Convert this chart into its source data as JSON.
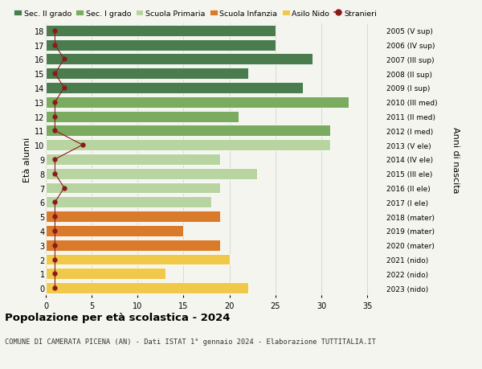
{
  "ages": [
    18,
    17,
    16,
    15,
    14,
    13,
    12,
    11,
    10,
    9,
    8,
    7,
    6,
    5,
    4,
    3,
    2,
    1,
    0
  ],
  "years": [
    "2005 (V sup)",
    "2006 (IV sup)",
    "2007 (III sup)",
    "2008 (II sup)",
    "2009 (I sup)",
    "2010 (III med)",
    "2011 (II med)",
    "2012 (I med)",
    "2013 (V ele)",
    "2014 (IV ele)",
    "2015 (III ele)",
    "2016 (II ele)",
    "2017 (I ele)",
    "2018 (mater)",
    "2019 (mater)",
    "2020 (mater)",
    "2021 (nido)",
    "2022 (nido)",
    "2023 (nido)"
  ],
  "bar_values": [
    25,
    25,
    29,
    22,
    28,
    33,
    21,
    31,
    31,
    19,
    23,
    19,
    18,
    19,
    15,
    19,
    20,
    13,
    22
  ],
  "bar_colors": [
    "#4a7c4e",
    "#4a7c4e",
    "#4a7c4e",
    "#4a7c4e",
    "#4a7c4e",
    "#7aab5e",
    "#7aab5e",
    "#7aab5e",
    "#b8d4a0",
    "#b8d4a0",
    "#b8d4a0",
    "#b8d4a0",
    "#b8d4a0",
    "#d97b2b",
    "#d97b2b",
    "#d97b2b",
    "#f0c84a",
    "#f0c84a",
    "#f0c84a"
  ],
  "stranieri_values": [
    1,
    1,
    2,
    1,
    2,
    1,
    1,
    1,
    4,
    1,
    1,
    2,
    1,
    1,
    1,
    1,
    1,
    1,
    1
  ],
  "stranieri_color": "#8b1a1a",
  "legend_labels": [
    "Sec. II grado",
    "Sec. I grado",
    "Scuola Primaria",
    "Scuola Infanzia",
    "Asilo Nido",
    "Stranieri"
  ],
  "legend_colors": [
    "#4a7c4e",
    "#7aab5e",
    "#b8d4a0",
    "#d97b2b",
    "#f0c84a",
    "#8b1a1a"
  ],
  "title": "Popolazione per età scolastica - 2024",
  "subtitle": "COMUNE DI CAMERATA PICENA (AN) - Dati ISTAT 1° gennaio 2024 - Elaborazione TUTTITALIA.IT",
  "ylabel_left": "Età alunni",
  "ylabel_right": "Anni di nascita",
  "xlim": [
    0,
    37
  ],
  "xticks": [
    0,
    5,
    10,
    15,
    20,
    25,
    30,
    35
  ],
  "bg_color": "#f5f5f0",
  "grid_color": "#cccccc"
}
